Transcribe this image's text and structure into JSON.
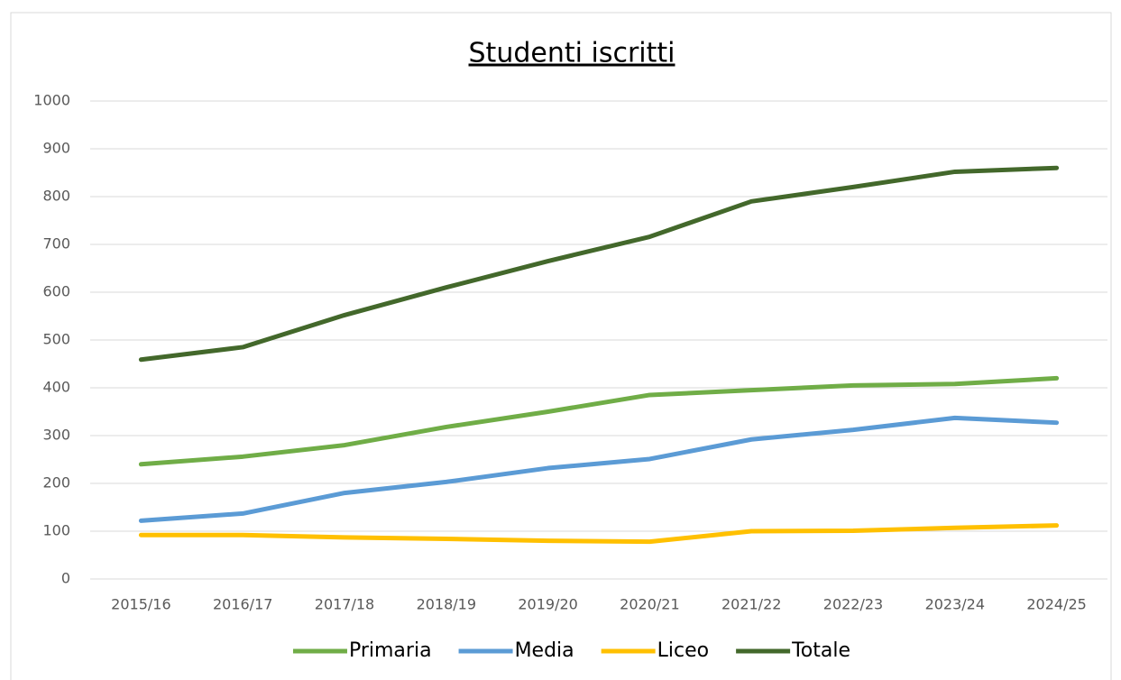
{
  "chart_data": {
    "type": "line",
    "title": "Studenti iscritti",
    "categories": [
      "2015/16",
      "2016/17",
      "2017/18",
      "2018/19",
      "2019/20",
      "2020/21",
      "2021/22",
      "2022/23",
      "2023/24",
      "2024/25"
    ],
    "series": [
      {
        "name": "Primaria",
        "color": "#70ad47",
        "values": [
          240,
          256,
          280,
          318,
          350,
          385,
          395,
          405,
          408,
          420
        ]
      },
      {
        "name": "Media",
        "color": "#5b9bd5",
        "values": [
          122,
          137,
          180,
          203,
          232,
          251,
          292,
          312,
          337,
          327
        ]
      },
      {
        "name": "Liceo",
        "color": "#ffc000",
        "values": [
          92,
          92,
          87,
          84,
          80,
          78,
          100,
          101,
          107,
          112
        ]
      },
      {
        "name": "Totale",
        "color": "#43682b",
        "values": [
          459,
          485,
          552,
          610,
          665,
          716,
          790,
          820,
          852,
          860
        ]
      }
    ],
    "ylim": [
      0,
      1000
    ],
    "yticks": [
      0,
      100,
      200,
      300,
      400,
      500,
      600,
      700,
      800,
      900,
      1000
    ],
    "grid": true,
    "legend": "bottom"
  }
}
